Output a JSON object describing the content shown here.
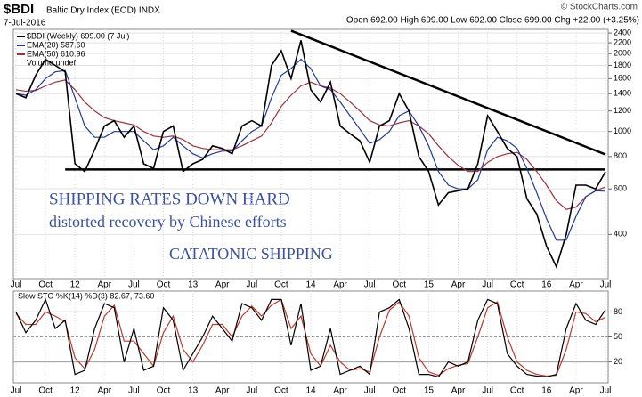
{
  "chart_data": [
    {
      "type": "line",
      "title": "$BDI",
      "subtitle": "Baltic Dry Index (EOD) INDX",
      "date": "7-Jul-2016",
      "quote": "Open 692.00 High 699.00 Low 692.00 Close 699.00 Chg +22.00 (+3.25%)",
      "source": "© StockCharts.com",
      "legend": "top-left",
      "legend_extra": "Volume undef",
      "log_scale": true,
      "grid": true,
      "annotations": [
        "SHIPPING RATES DOWN HARD",
        "distorted recovery by Chinese efforts",
        "CATATONIC SHIPPING"
      ],
      "x": [
        "2011-07",
        "2011-08",
        "2011-09",
        "2011-10",
        "2011-11",
        "2011-12",
        "2012-01",
        "2012-02",
        "2012-03",
        "2012-04",
        "2012-05",
        "2012-06",
        "2012-07",
        "2012-08",
        "2012-09",
        "2012-10",
        "2012-11",
        "2012-12",
        "2013-01",
        "2013-02",
        "2013-03",
        "2013-04",
        "2013-05",
        "2013-06",
        "2013-07",
        "2013-08",
        "2013-09",
        "2013-10",
        "2013-11",
        "2013-12",
        "2014-01",
        "2014-02",
        "2014-03",
        "2014-04",
        "2014-05",
        "2014-06",
        "2014-07",
        "2014-08",
        "2014-09",
        "2014-10",
        "2014-11",
        "2014-12",
        "2015-01",
        "2015-02",
        "2015-03",
        "2015-04",
        "2015-05",
        "2015-06",
        "2015-07",
        "2015-08",
        "2015-09",
        "2015-10",
        "2015-11",
        "2015-12",
        "2016-01",
        "2016-02",
        "2016-03",
        "2016-04",
        "2016-05",
        "2016-06",
        "2016-07"
      ],
      "series": [
        {
          "name": "$BDI (Weekly) 699.00 (7 Jul)",
          "color": "#000000",
          "values": [
            1400,
            1350,
            1650,
            1900,
            1800,
            1700,
            750,
            700,
            850,
            1050,
            1100,
            950,
            1050,
            750,
            720,
            1000,
            1050,
            700,
            750,
            780,
            880,
            860,
            820,
            1050,
            1100,
            1050,
            1800,
            2050,
            1600,
            2250,
            1450,
            1300,
            1550,
            1050,
            980,
            920,
            760,
            1050,
            1100,
            1400,
            1200,
            800,
            700,
            520,
            580,
            590,
            600,
            750,
            1150,
            1000,
            860,
            800,
            550,
            480,
            360,
            300,
            400,
            620,
            620,
            600,
            699
          ]
        },
        {
          "name": "EMA(20) 587.60",
          "color": "#1f3a9a",
          "values": [
            1400,
            1380,
            1450,
            1600,
            1700,
            1720,
            1350,
            1050,
            950,
            950,
            1000,
            1000,
            1000,
            920,
            850,
            880,
            950,
            880,
            820,
            790,
            820,
            840,
            840,
            920,
            1000,
            1050,
            1350,
            1650,
            1750,
            1900,
            1750,
            1500,
            1450,
            1300,
            1150,
            1020,
            900,
            930,
            1000,
            1150,
            1200,
            1050,
            880,
            700,
            620,
            600,
            600,
            650,
            850,
            950,
            920,
            860,
            720,
            580,
            460,
            380,
            380,
            470,
            560,
            590,
            587.6
          ]
        },
        {
          "name": "EMA(50) 610.96",
          "color": "#a0303c",
          "values": [
            1450,
            1430,
            1440,
            1500,
            1550,
            1580,
            1450,
            1300,
            1200,
            1130,
            1100,
            1080,
            1060,
            1000,
            960,
            950,
            960,
            930,
            880,
            860,
            850,
            850,
            850,
            880,
            920,
            960,
            1080,
            1250,
            1380,
            1500,
            1550,
            1500,
            1470,
            1400,
            1300,
            1200,
            1100,
            1060,
            1050,
            1080,
            1100,
            1050,
            980,
            880,
            800,
            740,
            700,
            700,
            760,
            800,
            820,
            830,
            780,
            700,
            620,
            540,
            500,
            510,
            560,
            590,
            610.96
          ]
        }
      ],
      "trendlines": [
        {
          "color": "#000000",
          "x": [
            "2011-12",
            "2016-07"
          ],
          "values": [
            713,
            713
          ]
        },
        {
          "color": "#000000",
          "x": [
            "2013-11",
            "2016-07"
          ],
          "values": [
            2450,
            815
          ]
        }
      ],
      "xlim": [
        "2011-07",
        "2016-07"
      ],
      "xticks": [
        {
          "value": "2011-07",
          "label": "Jul"
        },
        {
          "value": "2011-10",
          "label": "Oct"
        },
        {
          "value": "2012-01",
          "label": "12"
        },
        {
          "value": "2012-04",
          "label": "Apr"
        },
        {
          "value": "2012-07",
          "label": "Jul"
        },
        {
          "value": "2012-10",
          "label": "Oct"
        },
        {
          "value": "2013-01",
          "label": "13"
        },
        {
          "value": "2013-04",
          "label": "Apr"
        },
        {
          "value": "2013-07",
          "label": "Jul"
        },
        {
          "value": "2013-10",
          "label": "Oct"
        },
        {
          "value": "2014-01",
          "label": "14"
        },
        {
          "value": "2014-04",
          "label": "Apr"
        },
        {
          "value": "2014-07",
          "label": "Jul"
        },
        {
          "value": "2014-10",
          "label": "Oct"
        },
        {
          "value": "2015-01",
          "label": "15"
        },
        {
          "value": "2015-04",
          "label": "Apr"
        },
        {
          "value": "2015-07",
          "label": "Jul"
        },
        {
          "value": "2015-10",
          "label": "Oct"
        },
        {
          "value": "2016-01",
          "label": "16"
        },
        {
          "value": "2016-04",
          "label": "Apr"
        },
        {
          "value": "2016-07",
          "label": "Jul"
        }
      ],
      "ylim": [
        270,
        2480
      ],
      "yticks": [
        400,
        600,
        800,
        1000,
        1200,
        1400,
        1600,
        1800,
        2000,
        2200,
        2400
      ]
    },
    {
      "type": "line",
      "title": "Slow STO %K(14) %D(3) 82.67, 73.60",
      "grid": true,
      "x": [
        "2011-07",
        "2011-08",
        "2011-09",
        "2011-10",
        "2011-11",
        "2011-12",
        "2012-01",
        "2012-02",
        "2012-03",
        "2012-04",
        "2012-05",
        "2012-06",
        "2012-07",
        "2012-08",
        "2012-09",
        "2012-10",
        "2012-11",
        "2012-12",
        "2013-01",
        "2013-02",
        "2013-03",
        "2013-04",
        "2013-05",
        "2013-06",
        "2013-07",
        "2013-08",
        "2013-09",
        "2013-10",
        "2013-11",
        "2013-12",
        "2014-01",
        "2014-02",
        "2014-03",
        "2014-04",
        "2014-05",
        "2014-06",
        "2014-07",
        "2014-08",
        "2014-09",
        "2014-10",
        "2014-11",
        "2014-12",
        "2015-01",
        "2015-02",
        "2015-03",
        "2015-04",
        "2015-05",
        "2015-06",
        "2015-07",
        "2015-08",
        "2015-09",
        "2015-10",
        "2015-11",
        "2015-12",
        "2016-01",
        "2016-02",
        "2016-03",
        "2016-04",
        "2016-05",
        "2016-06",
        "2016-07"
      ],
      "series": [
        {
          "color": "#000000",
          "values": [
            80,
            55,
            70,
            95,
            60,
            70,
            5,
            10,
            60,
            90,
            85,
            20,
            60,
            10,
            15,
            85,
            70,
            10,
            30,
            50,
            75,
            60,
            45,
            90,
            85,
            70,
            95,
            95,
            40,
            90,
            10,
            15,
            60,
            5,
            10,
            15,
            5,
            80,
            85,
            95,
            60,
            5,
            5,
            2,
            20,
            15,
            20,
            70,
            95,
            90,
            30,
            15,
            5,
            3,
            2,
            5,
            60,
            90,
            70,
            65,
            82.67
          ]
        },
        {
          "color": "#c0392b",
          "values": [
            78,
            65,
            65,
            80,
            75,
            68,
            25,
            12,
            35,
            75,
            88,
            45,
            45,
            30,
            15,
            55,
            75,
            35,
            20,
            40,
            65,
            65,
            50,
            75,
            87,
            75,
            88,
            95,
            60,
            75,
            30,
            15,
            40,
            20,
            10,
            12,
            8,
            50,
            82,
            92,
            75,
            25,
            8,
            4,
            12,
            16,
            18,
            50,
            85,
            92,
            50,
            20,
            10,
            5,
            3,
            4,
            35,
            80,
            78,
            68,
            73.6
          ]
        }
      ],
      "xlim": [
        "2011-07",
        "2016-07"
      ],
      "xticks": [
        {
          "value": "2011-07",
          "label": "Jul"
        },
        {
          "value": "2011-10",
          "label": "Oct"
        },
        {
          "value": "2012-01",
          "label": "12"
        },
        {
          "value": "2012-04",
          "label": "Apr"
        },
        {
          "value": "2012-07",
          "label": "Jul"
        },
        {
          "value": "2012-10",
          "label": "Oct"
        },
        {
          "value": "2013-01",
          "label": "13"
        },
        {
          "value": "2013-04",
          "label": "Apr"
        },
        {
          "value": "2013-07",
          "label": "Jul"
        },
        {
          "value": "2013-10",
          "label": "Oct"
        },
        {
          "value": "2014-01",
          "label": "14"
        },
        {
          "value": "2014-04",
          "label": "Apr"
        },
        {
          "value": "2014-07",
          "label": "Jul"
        },
        {
          "value": "2014-10",
          "label": "Oct"
        },
        {
          "value": "2015-01",
          "label": "15"
        },
        {
          "value": "2015-04",
          "label": "Apr"
        },
        {
          "value": "2015-07",
          "label": "Jul"
        },
        {
          "value": "2015-10",
          "label": "Oct"
        },
        {
          "value": "2016-01",
          "label": "16"
        },
        {
          "value": "2016-04",
          "label": "Apr"
        },
        {
          "value": "2016-07",
          "label": "Jul"
        }
      ],
      "ylim": [
        -5,
        105
      ],
      "yticks": [
        20,
        50,
        80
      ]
    }
  ]
}
